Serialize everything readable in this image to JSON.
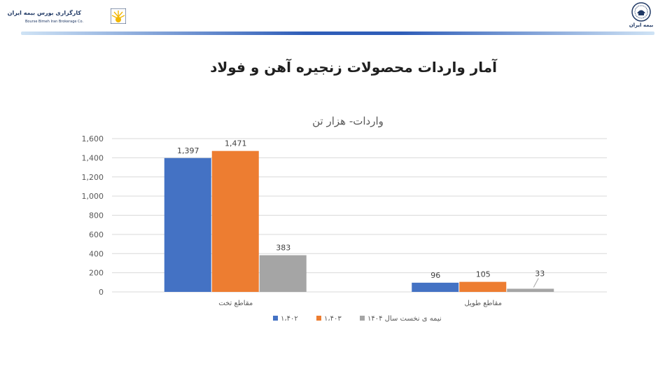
{
  "header": {
    "left_logo_fa": "کارگزاری بورس بیمه ایران",
    "left_logo_en": "Bourse Bimeh Iran Brokerage Co.",
    "right_logo_caption": "بیمه ایران"
  },
  "page_title": "آمار واردات محصولات زنجیره آهن و فولاد",
  "colors": {
    "series1": "#4472c4",
    "series2": "#ed7d31",
    "series3": "#a5a5a5",
    "header_bar": "#2f5db8"
  },
  "chart_data": {
    "type": "bar",
    "title": "واردات- هزار تن",
    "categories": [
      "مقاطع تخت",
      "مقاطع طویل"
    ],
    "series": [
      {
        "name": "۱،۴۰۲",
        "values": [
          1397,
          96
        ],
        "labels": [
          "1,397",
          "96"
        ]
      },
      {
        "name": "۱،۴۰۳",
        "values": [
          1471,
          105
        ],
        "labels": [
          "1,471",
          "105"
        ]
      },
      {
        "name": "نیمه ی نخست سال ۱۴۰۴",
        "values": [
          383,
          33
        ],
        "labels": [
          "383",
          "33"
        ]
      }
    ],
    "ylim": [
      0,
      1600
    ],
    "yticks": [
      "0",
      "200",
      "400",
      "600",
      "800",
      "1,000",
      "1,200",
      "1,400",
      "1,600"
    ],
    "grid": true,
    "legend": "bottom"
  }
}
